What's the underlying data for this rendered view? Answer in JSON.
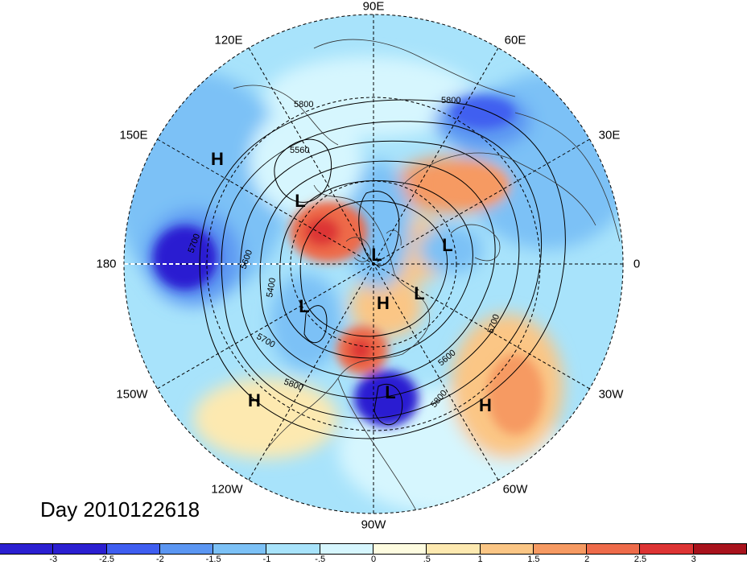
{
  "title": "Day 2010122618",
  "longitude_labels": [
    "90E",
    "60E",
    "30E",
    "0",
    "30W",
    "60W",
    "90W",
    "120W",
    "150W",
    "180",
    "150E",
    "120E"
  ],
  "pressure_systems": [
    {
      "label": "H",
      "name": "high-ne-pacific"
    },
    {
      "label": "L",
      "name": "low-hudson-bay"
    },
    {
      "label": "L",
      "name": "low-greenland"
    },
    {
      "label": "L",
      "name": "low-north-atlantic"
    },
    {
      "label": "L",
      "name": "low-arctic-canada"
    },
    {
      "label": "H",
      "name": "high-central-arctic"
    },
    {
      "label": "L",
      "name": "low-iceland"
    },
    {
      "label": "L",
      "name": "low-eastern-us"
    },
    {
      "label": "H",
      "name": "high-sw-asia"
    },
    {
      "label": "H",
      "name": "high-north-atlantic"
    }
  ],
  "contour_labels": [
    "5800",
    "5560",
    "5700",
    "5600",
    "5400",
    "5700",
    "5800",
    "5700",
    "5600",
    "5800",
    "5800"
  ],
  "colorbar": {
    "ticks": [
      "-3",
      "-2.5",
      "-2",
      "-1.5",
      "-1",
      "-.5",
      "0",
      ".5",
      "1",
      "1.5",
      "2",
      "2.5",
      "3"
    ],
    "colors": [
      "#2b1fd1",
      "#3f5ef0",
      "#5b96f2",
      "#7cc1f6",
      "#a8e3fb",
      "#d6f6fe",
      "#fefce0",
      "#fde9b0",
      "#fbc685",
      "#f69a62",
      "#ee6b4a",
      "#dd3434",
      "#a8121c"
    ]
  }
}
